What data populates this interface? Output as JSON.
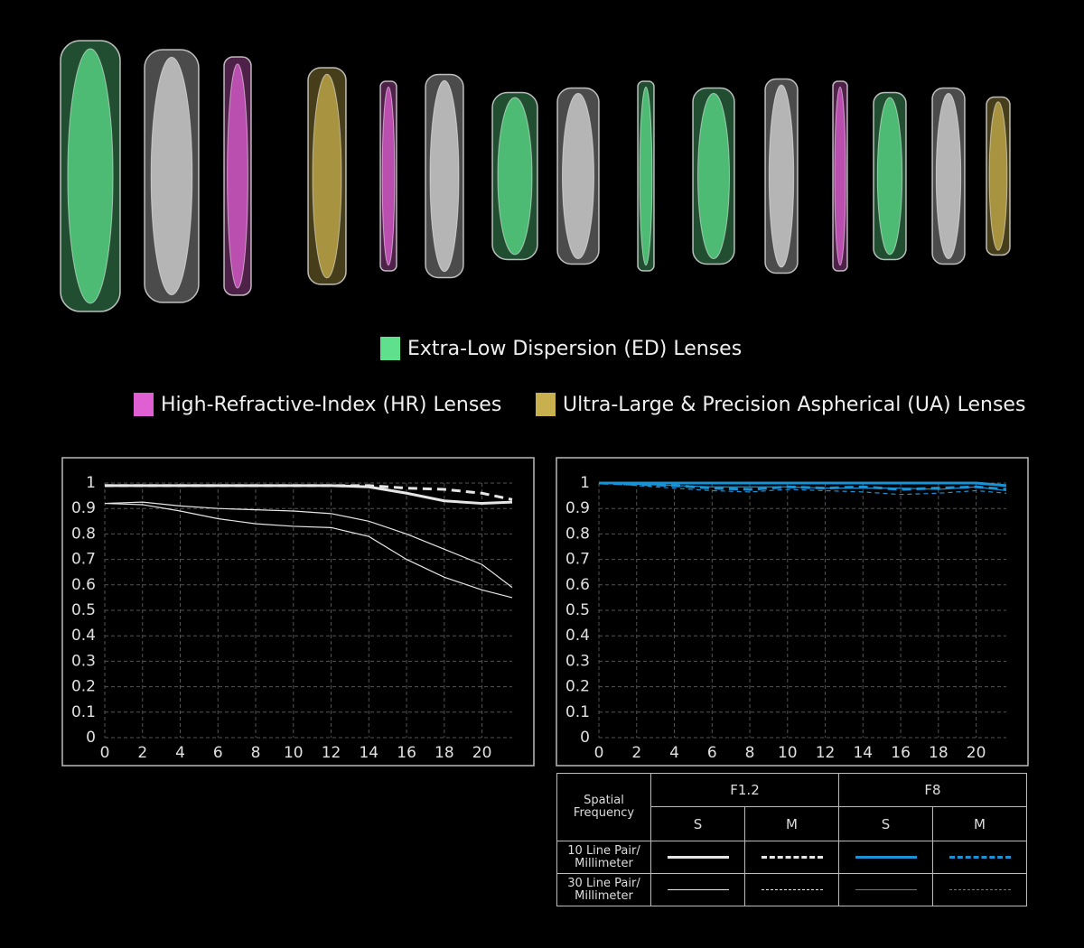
{
  "legend": [
    {
      "label": "Extra-Low Dispersion (ED) Lenses",
      "color": "#5ee08c"
    },
    {
      "label": "High-Refractive-Index (HR) Lenses",
      "color": "#e05fd2"
    },
    {
      "label": "Ultra-Large & Precision Aspherical (UA) Lenses",
      "color": "#c9b04e"
    }
  ],
  "chart_data": [
    {
      "type": "line",
      "xlim": [
        0,
        21.6
      ],
      "xticks": [
        0,
        2,
        4,
        6,
        8,
        10,
        12,
        14,
        16,
        18,
        20
      ],
      "ylim": [
        0,
        1
      ],
      "yticks": [
        0,
        0.1,
        0.2,
        0.3,
        0.4,
        0.5,
        0.6,
        0.7,
        0.8,
        0.9,
        1
      ],
      "grid": true,
      "x": [
        0,
        2,
        4,
        6,
        8,
        10,
        12,
        14,
        16,
        18,
        20,
        21.6
      ],
      "series": [
        {
          "color": "#e6e6e6",
          "width": 3,
          "dash": false,
          "values": [
            0.99,
            0.99,
            0.99,
            0.99,
            0.99,
            0.99,
            0.99,
            0.985,
            0.96,
            0.93,
            0.92,
            0.925
          ]
        },
        {
          "color": "#e6e6e6",
          "width": 3,
          "dash": true,
          "values": [
            0.99,
            0.99,
            0.99,
            0.99,
            0.99,
            0.99,
            0.99,
            0.99,
            0.98,
            0.975,
            0.96,
            0.935
          ]
        },
        {
          "color": "#e6e6e6",
          "width": 1.2,
          "dash": false,
          "values": [
            0.92,
            0.925,
            0.91,
            0.9,
            0.895,
            0.89,
            0.88,
            0.85,
            0.8,
            0.74,
            0.68,
            0.59
          ]
        },
        {
          "color": "#e6e6e6",
          "width": 1.2,
          "dash": false,
          "values": [
            0.92,
            0.915,
            0.89,
            0.86,
            0.84,
            0.83,
            0.825,
            0.79,
            0.7,
            0.63,
            0.58,
            0.55
          ]
        }
      ]
    },
    {
      "type": "line",
      "xlim": [
        0,
        21.6
      ],
      "xticks": [
        0,
        2,
        4,
        6,
        8,
        10,
        12,
        14,
        16,
        18,
        20
      ],
      "ylim": [
        0,
        1
      ],
      "yticks": [
        0,
        0.1,
        0.2,
        0.3,
        0.4,
        0.5,
        0.6,
        0.7,
        0.8,
        0.9,
        1
      ],
      "grid": true,
      "x": [
        0,
        2,
        4,
        6,
        8,
        10,
        12,
        14,
        16,
        18,
        20,
        21.6
      ],
      "series": [
        {
          "color": "#1a92d4",
          "width": 3,
          "dash": false,
          "values": [
            1,
            1,
            1,
            1,
            1,
            1,
            1,
            1,
            1,
            1,
            1,
            0.99
          ]
        },
        {
          "color": "#1a92d4",
          "width": 3,
          "dash": true,
          "values": [
            1,
            0.995,
            0.99,
            0.98,
            0.975,
            0.985,
            0.98,
            0.985,
            0.975,
            0.98,
            0.985,
            0.975
          ]
        },
        {
          "color": "#1a92d4",
          "width": 1.2,
          "dash": false,
          "values": [
            1,
            0.995,
            0.99,
            0.985,
            0.985,
            0.985,
            0.98,
            0.98,
            0.98,
            0.975,
            0.985,
            0.97
          ]
        },
        {
          "color": "#1a92d4",
          "width": 1.2,
          "dash": true,
          "values": [
            1,
            0.99,
            0.98,
            0.97,
            0.965,
            0.975,
            0.97,
            0.965,
            0.955,
            0.96,
            0.97,
            0.96
          ]
        }
      ]
    }
  ],
  "table": {
    "corner": "Spatial Frequency",
    "apertures": [
      "F1.2",
      "F8"
    ],
    "types": [
      "S",
      "M",
      "S",
      "M"
    ],
    "rows": [
      "10 Line Pair/ Millimeter",
      "30 Line Pair/ Millimeter"
    ]
  }
}
